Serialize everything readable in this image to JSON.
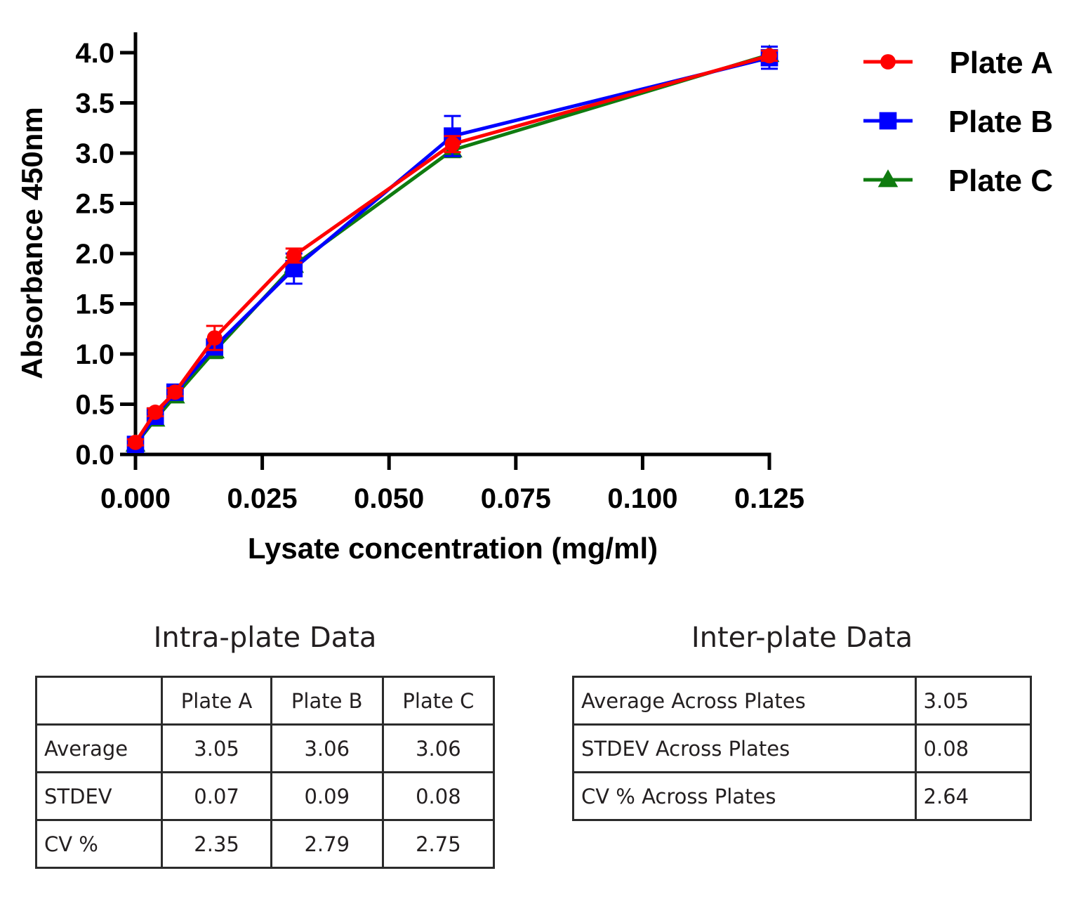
{
  "chart_data": {
    "type": "line",
    "xlabel": "Lysate concentration (mg/ml)",
    "ylabel": "Absorbance 450nm",
    "xlim": [
      0,
      0.125
    ],
    "ylim": [
      0,
      4.0
    ],
    "xticks": [
      "0.000",
      "0.025",
      "0.050",
      "0.075",
      "0.100",
      "0.125"
    ],
    "yticks": [
      "0.0",
      "0.5",
      "1.0",
      "1.5",
      "2.0",
      "2.5",
      "3.0",
      "3.5",
      "4.0"
    ],
    "legend_position": "top-right",
    "grid": false,
    "error_bars": true,
    "x": [
      0,
      0.0039,
      0.0078,
      0.0156,
      0.03125,
      0.0625,
      0.125
    ],
    "series": [
      {
        "name": "Plate A",
        "color": "#ff0000",
        "marker": "circle",
        "values": [
          0.12,
          0.42,
          0.62,
          1.16,
          1.98,
          3.09,
          3.97
        ],
        "errors": [
          0.03,
          0.04,
          0.04,
          0.12,
          0.07,
          0.08,
          0.05
        ]
      },
      {
        "name": "Plate B",
        "color": "#0000ff",
        "marker": "square",
        "values": [
          0.1,
          0.38,
          0.62,
          1.07,
          1.85,
          3.17,
          3.95
        ],
        "errors": [
          0.03,
          0.04,
          0.05,
          0.06,
          0.15,
          0.2,
          0.11
        ]
      },
      {
        "name": "Plate C",
        "color": "#0f7b0f",
        "marker": "triangle",
        "values": [
          0.1,
          0.35,
          0.58,
          1.03,
          1.88,
          3.03,
          3.98
        ],
        "errors": [
          0.02,
          0.03,
          0.03,
          0.07,
          0.08,
          0.07,
          0.03
        ]
      }
    ]
  },
  "intra": {
    "title": "Intra-plate Data",
    "headers": [
      "",
      "Plate A",
      "Plate B",
      "Plate C"
    ],
    "rows": [
      [
        "Average",
        "3.05",
        "3.06",
        "3.06"
      ],
      [
        "STDEV",
        "0.07",
        "0.09",
        "0.08"
      ],
      [
        "CV %",
        "2.35",
        "2.79",
        "2.75"
      ]
    ]
  },
  "inter": {
    "title": "Inter-plate Data",
    "rows": [
      [
        "Average Across Plates",
        "3.05"
      ],
      [
        "STDEV Across Plates",
        "0.08"
      ],
      [
        "CV % Across Plates",
        "2.64"
      ]
    ]
  }
}
